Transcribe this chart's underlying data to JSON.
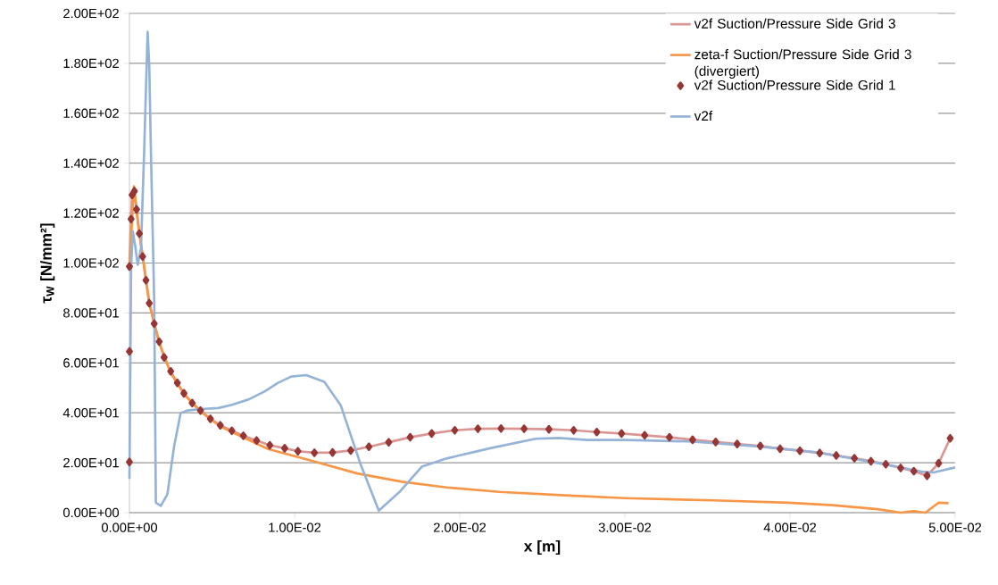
{
  "chart_data": {
    "type": "line",
    "xlabel": "x [m]",
    "ylabel": "τ$_{W}$ [N/mm²]",
    "xlim": [
      0,
      0.05
    ],
    "ylim": [
      0,
      200
    ],
    "xticks": [
      {
        "value": 0,
        "label": "0.00E+00"
      },
      {
        "value": 0.01,
        "label": "1.00E-02"
      },
      {
        "value": 0.02,
        "label": "2.00E-02"
      },
      {
        "value": 0.03,
        "label": "3.00E-02"
      },
      {
        "value": 0.04,
        "label": "4.00E-02"
      },
      {
        "value": 0.05,
        "label": "5.00E-02"
      }
    ],
    "yticks": [
      {
        "value": 0,
        "label": "0.00E+00"
      },
      {
        "value": 20,
        "label": "2.00E+01"
      },
      {
        "value": 40,
        "label": "4.00E+01"
      },
      {
        "value": 60,
        "label": "6.00E+01"
      },
      {
        "value": 80,
        "label": "8.00E+01"
      },
      {
        "value": 100,
        "label": "1.00E+02"
      },
      {
        "value": 120,
        "label": "1.20E+02"
      },
      {
        "value": 140,
        "label": "1.40E+02"
      },
      {
        "value": 160,
        "label": "1.60E+02"
      },
      {
        "value": 180,
        "label": "1.80E+02"
      },
      {
        "value": 200,
        "label": "2.00E+02"
      }
    ],
    "grid": "y",
    "legend": "top right",
    "series": [
      {
        "name": "v2f Suction/Pressure Side Grid 3",
        "color": "#d99694",
        "x": [
          0,
          0.0001,
          0.00016,
          0.0003,
          0.00043,
          0.0006,
          0.0008,
          0.001,
          0.0012,
          0.0015,
          0.0018,
          0.0021,
          0.0025,
          0.0029,
          0.0033,
          0.0038,
          0.0043,
          0.0049,
          0.0055,
          0.0062,
          0.0069,
          0.0077,
          0.0085,
          0.0094,
          0.0102,
          0.0112,
          0.0123,
          0.0134,
          0.0145,
          0.0157,
          0.017,
          0.0183,
          0.0197,
          0.0211,
          0.0225,
          0.0239,
          0.0254,
          0.0269,
          0.0283,
          0.0298,
          0.0312,
          0.0327,
          0.0341,
          0.0355,
          0.0368,
          0.0382,
          0.0394,
          0.0406,
          0.0418,
          0.0428,
          0.0439,
          0.0449,
          0.0458,
          0.0467,
          0.0475,
          0.0483,
          0.049,
          0.0497
        ],
        "values": [
          98.6,
          117.6,
          127.3,
          128.8,
          121.5,
          111.8,
          102.6,
          93.1,
          83.9,
          75.7,
          68.5,
          62.2,
          56.6,
          52.0,
          47.8,
          43.9,
          40.9,
          37.6,
          35.0,
          32.8,
          30.8,
          28.9,
          27.0,
          25.8,
          24.6,
          24.0,
          24.1,
          24.9,
          26.4,
          28.2,
          30.2,
          31.7,
          33.0,
          33.6,
          33.7,
          33.6,
          33.4,
          33.0,
          32.3,
          31.7,
          31.0,
          30.2,
          29.2,
          28.3,
          27.5,
          26.7,
          25.6,
          24.8,
          23.9,
          22.9,
          21.8,
          20.6,
          19.4,
          17.9,
          16.6,
          14.8,
          19.8,
          29.8
        ]
      },
      {
        "name": "zeta-f Suction/Pressure Side Grid 3 (divergiert)",
        "color": "#f79646",
        "x": [
          0,
          0.00027,
          0.0005,
          0.0008,
          0.0012,
          0.0018,
          0.0025,
          0.0033,
          0.0043,
          0.0055,
          0.0084,
          0.0112,
          0.0138,
          0.0165,
          0.0192,
          0.0224,
          0.0264,
          0.03,
          0.0354,
          0.0399,
          0.0426,
          0.0453,
          0.0467,
          0.0475,
          0.0482,
          0.049,
          0.0496
        ],
        "values": [
          98,
          130.7,
          117,
          103,
          84,
          68,
          56,
          47.5,
          40.5,
          34.5,
          25.5,
          20.5,
          15.7,
          12.4,
          10.1,
          8.3,
          6.9,
          5.8,
          4.9,
          4.0,
          3.0,
          1.4,
          0,
          0.6,
          0,
          4.0,
          3.8
        ]
      },
      {
        "name": "v2f Suction/Pressure Side Grid 1",
        "type": "scatter",
        "marker": "diamond",
        "color": "#953735",
        "x": [
          0,
          0,
          0,
          0.0001,
          0.00016,
          0.0003,
          0.00043,
          0.0006,
          0.0008,
          0.001,
          0.0012,
          0.0015,
          0.0018,
          0.0021,
          0.0025,
          0.0029,
          0.0033,
          0.0038,
          0.0043,
          0.0049,
          0.0055,
          0.0062,
          0.0069,
          0.0077,
          0.0085,
          0.0094,
          0.0102,
          0.0112,
          0.0123,
          0.0134,
          0.0145,
          0.0157,
          0.017,
          0.0183,
          0.0197,
          0.0211,
          0.0225,
          0.0239,
          0.0254,
          0.0269,
          0.0283,
          0.0298,
          0.0312,
          0.0327,
          0.0341,
          0.0355,
          0.0368,
          0.0382,
          0.0394,
          0.0406,
          0.0418,
          0.0428,
          0.0439,
          0.0449,
          0.0458,
          0.0467,
          0.0475,
          0.0483,
          0.049,
          0.0497
        ],
        "values": [
          20.3,
          64.6,
          98.6,
          117.6,
          127.3,
          128.8,
          121.5,
          111.8,
          102.6,
          93.1,
          83.9,
          75.7,
          68.5,
          62.2,
          56.6,
          52.0,
          47.8,
          43.9,
          40.9,
          37.6,
          35.0,
          32.8,
          30.8,
          28.9,
          27.0,
          25.8,
          24.6,
          24.0,
          24.1,
          24.9,
          26.4,
          28.2,
          30.2,
          31.7,
          33.0,
          33.6,
          33.7,
          33.6,
          33.4,
          33.0,
          32.3,
          31.7,
          31.0,
          30.2,
          29.2,
          28.3,
          27.5,
          26.7,
          25.6,
          24.8,
          23.9,
          22.9,
          21.8,
          20.6,
          19.4,
          17.9,
          16.6,
          14.8,
          19.8,
          29.8
        ]
      },
      {
        "name": "v2f",
        "color": "#95b3d7",
        "x": [
          0,
          0.0001,
          0.0002,
          0.00035,
          0.0005,
          0.0007,
          0.0009,
          0.0011,
          0.0012,
          0.0013,
          0.0015,
          0.0016,
          0.0019,
          0.0023,
          0.0027,
          0.0031,
          0.0035,
          0.0043,
          0.0054,
          0.0062,
          0.0072,
          0.0082,
          0.009,
          0.0098,
          0.0107,
          0.0118,
          0.0128,
          0.014,
          0.0151,
          0.0164,
          0.0177,
          0.0192,
          0.0219,
          0.0246,
          0.026,
          0.0277,
          0.03,
          0.0341,
          0.0381,
          0.0417,
          0.0453,
          0.048,
          0.0487,
          0.05
        ],
        "values": [
          13.5,
          98,
          112.8,
          106.8,
          99.3,
          106,
          146.6,
          192.6,
          179,
          145,
          84.5,
          4,
          2.7,
          7.4,
          26.4,
          39.9,
          40.9,
          41.5,
          41.9,
          43.2,
          45.3,
          48.6,
          52,
          54.5,
          55.1,
          52.4,
          42.9,
          19.3,
          0.8,
          8.6,
          18.4,
          21.7,
          25.9,
          29.6,
          29.9,
          29.1,
          29.1,
          28.5,
          26.5,
          24.1,
          19.9,
          16.4,
          16.1,
          18.1
        ]
      }
    ]
  }
}
